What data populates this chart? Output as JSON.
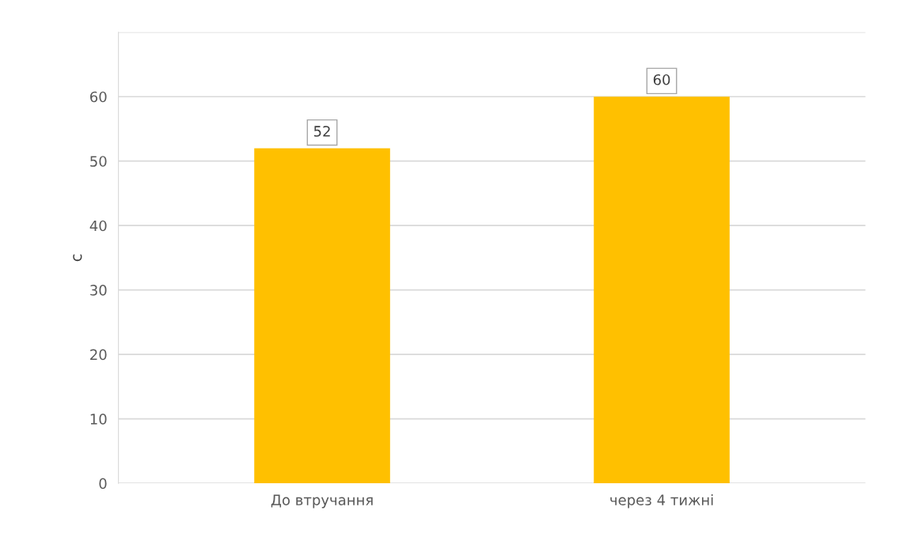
{
  "chart_data": {
    "type": "bar",
    "ylabel": "с",
    "categories": [
      "До втручання",
      "через 4 тижні"
    ],
    "values": [
      52,
      60
    ],
    "color": "#ffc000",
    "ylim": [
      0,
      70
    ],
    "yticks": [
      0,
      10,
      20,
      30,
      40,
      50,
      60,
      {
        "value": 70,
        "label": null
      }
    ],
    "grid": "y",
    "data_labels": true
  }
}
